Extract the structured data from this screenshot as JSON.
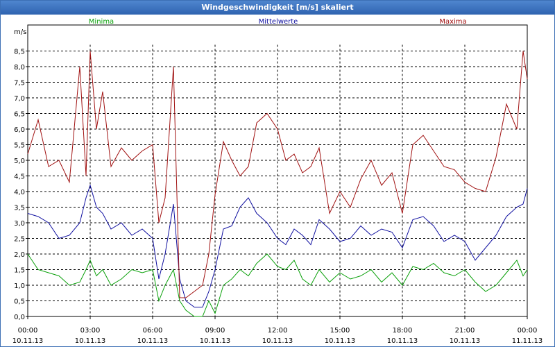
{
  "window": {
    "title": "Windgeschwindigkeit [m/s] skaliert"
  },
  "chart_data": {
    "type": "line",
    "title": "Windgeschwindigkeit [m/s] skaliert",
    "ylabel": "m/s",
    "ylim": [
      0,
      8.7
    ],
    "xlim": [
      0,
      24
    ],
    "grid": true,
    "y_ticks": [
      "0,0",
      "0,5",
      "1,0",
      "1,5",
      "2,0",
      "2,5",
      "3,0",
      "3,5",
      "4,0",
      "4,5",
      "5,0",
      "5,5",
      "6,0",
      "6,5",
      "7,0",
      "7,5",
      "8,0",
      "8,5"
    ],
    "x_ticks": [
      {
        "time": "00:00",
        "date": "10.11.13"
      },
      {
        "time": "03:00",
        "date": "10.11.13"
      },
      {
        "time": "06:00",
        "date": "10.11.13"
      },
      {
        "time": "09:00",
        "date": "10.11.13"
      },
      {
        "time": "12:00",
        "date": "10.11.13"
      },
      {
        "time": "15:00",
        "date": "10.11.13"
      },
      {
        "time": "18:00",
        "date": "10.11.13"
      },
      {
        "time": "21:00",
        "date": "10.11.13"
      },
      {
        "time": "00:00",
        "date": "11.11.13"
      }
    ],
    "colors": {
      "minima": "#0aa00a",
      "mittelwerte": "#1010a0",
      "maxima": "#a01010"
    },
    "series": [
      {
        "name": "Minima",
        "key": "minima",
        "x": [
          0,
          0.5,
          1,
          1.5,
          2,
          2.5,
          2.8,
          3,
          3.3,
          3.6,
          4,
          4.5,
          5,
          5.5,
          6,
          6.3,
          6.6,
          7,
          7.3,
          7.6,
          8,
          8.4,
          8.7,
          9,
          9.4,
          9.8,
          10.2,
          10.6,
          11,
          11.5,
          12,
          12.4,
          12.8,
          13.2,
          13.6,
          14,
          14.5,
          15,
          15.5,
          16,
          16.5,
          17,
          17.5,
          18,
          18.5,
          19,
          19.5,
          20,
          20.5,
          21,
          21.5,
          22,
          22.5,
          23,
          23.5,
          23.8,
          24
        ],
        "values": [
          2.0,
          1.5,
          1.4,
          1.3,
          1.0,
          1.1,
          1.5,
          1.8,
          1.3,
          1.5,
          1.0,
          1.2,
          1.5,
          1.4,
          1.5,
          0.5,
          1.0,
          1.5,
          0.5,
          0.2,
          0.0,
          0.0,
          0.5,
          0.1,
          1.0,
          1.2,
          1.5,
          1.3,
          1.7,
          2.0,
          1.6,
          1.5,
          1.8,
          1.2,
          1.0,
          1.5,
          1.1,
          1.4,
          1.2,
          1.3,
          1.5,
          1.1,
          1.4,
          1.0,
          1.6,
          1.5,
          1.7,
          1.4,
          1.3,
          1.5,
          1.1,
          0.8,
          1.0,
          1.4,
          1.8,
          1.3,
          1.5
        ]
      },
      {
        "name": "Mittelwerte",
        "key": "mittelwerte",
        "x": [
          0,
          0.5,
          1,
          1.5,
          2,
          2.5,
          2.8,
          3,
          3.3,
          3.6,
          4,
          4.5,
          5,
          5.5,
          6,
          6.3,
          6.6,
          7,
          7.3,
          7.6,
          8,
          8.4,
          8.7,
          9,
          9.4,
          9.8,
          10.2,
          10.6,
          11,
          11.5,
          12,
          12.4,
          12.8,
          13.2,
          13.6,
          14,
          14.5,
          15,
          15.5,
          16,
          16.5,
          17,
          17.5,
          18,
          18.5,
          19,
          19.5,
          20,
          20.5,
          21,
          21.5,
          22,
          22.5,
          23,
          23.5,
          23.8,
          24
        ],
        "values": [
          3.3,
          3.2,
          3.0,
          2.5,
          2.6,
          3.0,
          3.8,
          4.2,
          3.5,
          3.3,
          2.8,
          3.0,
          2.6,
          2.8,
          2.5,
          1.2,
          2.0,
          3.6,
          1.2,
          0.5,
          0.3,
          0.3,
          0.8,
          1.5,
          2.8,
          2.9,
          3.5,
          3.8,
          3.3,
          3.0,
          2.5,
          2.3,
          2.8,
          2.6,
          2.3,
          3.1,
          2.8,
          2.4,
          2.5,
          2.9,
          2.6,
          2.8,
          2.7,
          2.2,
          3.1,
          3.2,
          2.9,
          2.4,
          2.6,
          2.4,
          1.8,
          2.2,
          2.6,
          3.2,
          3.5,
          3.6,
          4.1
        ]
      },
      {
        "name": "Maxima",
        "key": "maxima",
        "x": [
          0,
          0.5,
          1,
          1.5,
          2,
          2.5,
          2.8,
          3,
          3.3,
          3.6,
          4,
          4.5,
          5,
          5.5,
          6,
          6.3,
          6.6,
          7,
          7.3,
          7.6,
          8,
          8.4,
          8.7,
          9,
          9.4,
          9.8,
          10.2,
          10.6,
          11,
          11.5,
          12,
          12.4,
          12.8,
          13.2,
          13.6,
          14,
          14.5,
          15,
          15.5,
          16,
          16.5,
          17,
          17.5,
          18,
          18.5,
          19,
          19.5,
          20,
          20.5,
          21,
          21.5,
          22,
          22.5,
          23,
          23.5,
          23.8,
          24
        ],
        "values": [
          5.2,
          6.3,
          4.8,
          5.0,
          4.3,
          8.0,
          4.5,
          8.5,
          6.0,
          7.2,
          4.8,
          5.4,
          5.0,
          5.3,
          5.5,
          3.0,
          3.8,
          8.0,
          0.6,
          0.6,
          0.8,
          1.0,
          2.0,
          3.9,
          5.6,
          5.0,
          4.5,
          4.8,
          6.2,
          6.5,
          6.0,
          5.0,
          5.2,
          4.6,
          4.8,
          5.4,
          3.3,
          4.0,
          3.5,
          4.4,
          5.0,
          4.2,
          4.6,
          3.3,
          5.5,
          5.8,
          5.3,
          4.8,
          4.7,
          4.3,
          4.1,
          4.0,
          5.1,
          6.8,
          6.0,
          8.5,
          7.6
        ]
      }
    ]
  }
}
